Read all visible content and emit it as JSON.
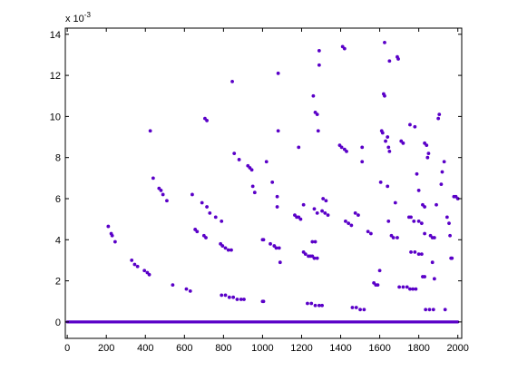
{
  "chart_data": {
    "type": "scatter",
    "title": "",
    "xlabel": "",
    "ylabel": "",
    "y_multiplier": {
      "base": "x 10",
      "exponent": "-3"
    },
    "xlim": [
      -10,
      2020
    ],
    "ylim": [
      -0.0008,
      0.0143
    ],
    "x_ticks": [
      0,
      200,
      400,
      600,
      800,
      1000,
      1200,
      1400,
      1600,
      1800,
      2000
    ],
    "x_tick_labels": [
      "0",
      "200",
      "400",
      "600",
      "800",
      "1000",
      "1200",
      "1400",
      "1600",
      "1800",
      "2000"
    ],
    "y_ticks": [
      0,
      0.002,
      0.004,
      0.006,
      0.008,
      0.01,
      0.012,
      0.014
    ],
    "y_tick_labels": [
      "0",
      "2",
      "4",
      "6",
      "8",
      "10",
      "12",
      "14"
    ],
    "grid": false,
    "legend": "none",
    "marker_color": "#5a00c8",
    "zero_baseline": {
      "x_start": 0,
      "x_end": 2000,
      "y": 0
    },
    "series": [
      {
        "points": [
          [
            210,
            0.00465
          ],
          [
            225,
            0.0043
          ],
          [
            230,
            0.0042
          ],
          [
            245,
            0.0039
          ],
          [
            330,
            0.003
          ],
          [
            345,
            0.0028
          ],
          [
            360,
            0.0027
          ],
          [
            395,
            0.0025
          ],
          [
            410,
            0.0024
          ],
          [
            420,
            0.0023
          ],
          [
            425,
            0.0093
          ],
          [
            440,
            0.007
          ],
          [
            470,
            0.0065
          ],
          [
            480,
            0.0064
          ],
          [
            490,
            0.0062
          ],
          [
            510,
            0.0059
          ],
          [
            540,
            0.0018
          ],
          [
            610,
            0.0016
          ],
          [
            630,
            0.0015
          ],
          [
            640,
            0.0062
          ],
          [
            655,
            0.0045
          ],
          [
            665,
            0.0044
          ],
          [
            700,
            0.0042
          ],
          [
            710,
            0.0041
          ],
          [
            690,
            0.0058
          ],
          [
            715,
            0.0056
          ],
          [
            730,
            0.0053
          ],
          [
            760,
            0.0051
          ],
          [
            790,
            0.0049
          ],
          [
            705,
            0.0099
          ],
          [
            715,
            0.0098
          ],
          [
            785,
            0.0038
          ],
          [
            795,
            0.0037
          ],
          [
            810,
            0.0036
          ],
          [
            825,
            0.0035
          ],
          [
            840,
            0.0035
          ],
          [
            790,
            0.0013
          ],
          [
            810,
            0.0013
          ],
          [
            830,
            0.0012
          ],
          [
            850,
            0.0012
          ],
          [
            870,
            0.0011
          ],
          [
            890,
            0.0011
          ],
          [
            905,
            0.0011
          ],
          [
            845,
            0.0117
          ],
          [
            855,
            0.0082
          ],
          [
            880,
            0.0079
          ],
          [
            925,
            0.0076
          ],
          [
            935,
            0.0075
          ],
          [
            945,
            0.0074
          ],
          [
            950,
            0.0066
          ],
          [
            960,
            0.0063
          ],
          [
            1000,
            0.004
          ],
          [
            1005,
            0.004
          ],
          [
            1040,
            0.0038
          ],
          [
            1060,
            0.0037
          ],
          [
            1070,
            0.0036
          ],
          [
            1085,
            0.0036
          ],
          [
            1020,
            0.0078
          ],
          [
            1050,
            0.0068
          ],
          [
            1075,
            0.0061
          ],
          [
            1075,
            0.0056
          ],
          [
            1080,
            0.0121
          ],
          [
            1080,
            0.0093
          ],
          [
            1090,
            0.0029
          ],
          [
            1000,
            0.001
          ],
          [
            1005,
            0.001
          ],
          [
            1165,
            0.0052
          ],
          [
            1175,
            0.0051
          ],
          [
            1185,
            0.0051
          ],
          [
            1195,
            0.005
          ],
          [
            1185,
            0.0085
          ],
          [
            1210,
            0.0057
          ],
          [
            1210,
            0.0034
          ],
          [
            1220,
            0.0033
          ],
          [
            1235,
            0.0032
          ],
          [
            1245,
            0.0032
          ],
          [
            1255,
            0.0032
          ],
          [
            1265,
            0.0031
          ],
          [
            1280,
            0.0031
          ],
          [
            1230,
            0.0009
          ],
          [
            1250,
            0.0009
          ],
          [
            1270,
            0.0008
          ],
          [
            1290,
            0.0008
          ],
          [
            1305,
            0.0008
          ],
          [
            1260,
            0.011
          ],
          [
            1270,
            0.0102
          ],
          [
            1280,
            0.0101
          ],
          [
            1285,
            0.0093
          ],
          [
            1290,
            0.0125
          ],
          [
            1290,
            0.0132
          ],
          [
            1255,
            0.0039
          ],
          [
            1270,
            0.0039
          ],
          [
            1265,
            0.0055
          ],
          [
            1280,
            0.0053
          ],
          [
            1305,
            0.0054
          ],
          [
            1320,
            0.0053
          ],
          [
            1310,
            0.006
          ],
          [
            1325,
            0.0059
          ],
          [
            1335,
            0.0052
          ],
          [
            1395,
            0.0086
          ],
          [
            1405,
            0.0085
          ],
          [
            1420,
            0.0084
          ],
          [
            1430,
            0.0083
          ],
          [
            1410,
            0.0134
          ],
          [
            1420,
            0.0133
          ],
          [
            1425,
            0.0049
          ],
          [
            1440,
            0.0048
          ],
          [
            1455,
            0.0047
          ],
          [
            1475,
            0.0053
          ],
          [
            1490,
            0.0052
          ],
          [
            1510,
            0.0085
          ],
          [
            1510,
            0.0078
          ],
          [
            1460,
            0.0007
          ],
          [
            1480,
            0.0007
          ],
          [
            1500,
            0.0006
          ],
          [
            1520,
            0.0006
          ],
          [
            1540,
            0.0044
          ],
          [
            1555,
            0.0043
          ],
          [
            1570,
            0.0019
          ],
          [
            1580,
            0.0018
          ],
          [
            1590,
            0.0018
          ],
          [
            1600,
            0.0025
          ],
          [
            1605,
            0.0068
          ],
          [
            1610,
            0.0093
          ],
          [
            1615,
            0.0092
          ],
          [
            1620,
            0.0111
          ],
          [
            1625,
            0.011
          ],
          [
            1625,
            0.0136
          ],
          [
            1630,
            0.0088
          ],
          [
            1640,
            0.009
          ],
          [
            1645,
            0.0085
          ],
          [
            1650,
            0.0083
          ],
          [
            1640,
            0.0066
          ],
          [
            1645,
            0.0049
          ],
          [
            1660,
            0.0042
          ],
          [
            1670,
            0.0041
          ],
          [
            1650,
            0.0127
          ],
          [
            1690,
            0.0129
          ],
          [
            1695,
            0.0128
          ],
          [
            1680,
            0.0058
          ],
          [
            1690,
            0.0041
          ],
          [
            1700,
            0.0017
          ],
          [
            1720,
            0.0017
          ],
          [
            1740,
            0.0017
          ],
          [
            1755,
            0.0016
          ],
          [
            1770,
            0.0016
          ],
          [
            1785,
            0.0016
          ],
          [
            1710,
            0.0088
          ],
          [
            1720,
            0.0087
          ],
          [
            1750,
            0.0051
          ],
          [
            1760,
            0.0051
          ],
          [
            1775,
            0.0049
          ],
          [
            1755,
            0.0096
          ],
          [
            1780,
            0.0095
          ],
          [
            1760,
            0.0034
          ],
          [
            1780,
            0.0034
          ],
          [
            1800,
            0.0033
          ],
          [
            1815,
            0.0033
          ],
          [
            1790,
            0.0072
          ],
          [
            1800,
            0.0064
          ],
          [
            1820,
            0.0057
          ],
          [
            1830,
            0.0056
          ],
          [
            1800,
            0.0049
          ],
          [
            1815,
            0.0048
          ],
          [
            1830,
            0.0043
          ],
          [
            1820,
            0.0022
          ],
          [
            1830,
            0.0022
          ],
          [
            1830,
            0.0087
          ],
          [
            1840,
            0.0086
          ],
          [
            1850,
            0.0082
          ],
          [
            1845,
            0.008
          ],
          [
            1860,
            0.0042
          ],
          [
            1870,
            0.0041
          ],
          [
            1880,
            0.0041
          ],
          [
            1870,
            0.0029
          ],
          [
            1880,
            0.0021
          ],
          [
            1890,
            0.0057
          ],
          [
            1900,
            0.0099
          ],
          [
            1905,
            0.0101
          ],
          [
            1915,
            0.0067
          ],
          [
            1920,
            0.0073
          ],
          [
            1930,
            0.0078
          ],
          [
            1945,
            0.0051
          ],
          [
            1955,
            0.0048
          ],
          [
            1960,
            0.0042
          ],
          [
            1965,
            0.0031
          ],
          [
            1970,
            0.0031
          ],
          [
            1980,
            0.0061
          ],
          [
            1990,
            0.0061
          ],
          [
            2000,
            0.006
          ],
          [
            1835,
            0.0006
          ],
          [
            1855,
            0.0006
          ],
          [
            1875,
            0.0006
          ],
          [
            1935,
            0.0006
          ]
        ]
      }
    ]
  }
}
